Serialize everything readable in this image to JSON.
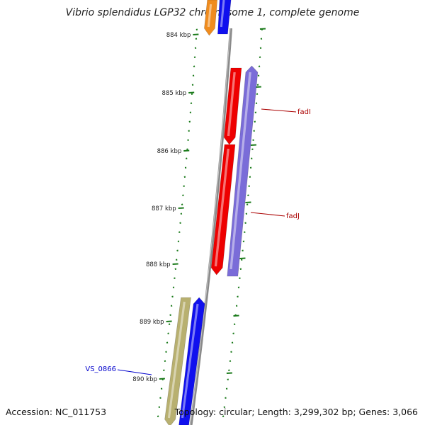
{
  "title": "Vibrio splendidus LGP32 chromosome 1, complete genome",
  "footer": {
    "accession": "Accession: NC_011753",
    "summary": "Topology: circular; Length: 3,299,302 bp; Genes: 3,066"
  },
  "ticks": [
    {
      "label": "884 kbp"
    },
    {
      "label": "885 kbp"
    },
    {
      "label": "886 kbp"
    },
    {
      "label": "887 kbp"
    },
    {
      "label": "888 kbp"
    },
    {
      "label": "889 kbp"
    },
    {
      "label": "890 kbp"
    }
  ],
  "genes": [
    {
      "name": "",
      "color": "#f08c1e",
      "strand": "plus"
    },
    {
      "name": "",
      "color": "#1010ee",
      "strand": "minus"
    },
    {
      "name": "fadI",
      "color": "#ee0000",
      "strand": "plus"
    },
    {
      "name": "",
      "color": "#7a6cd8",
      "strand": "minus"
    },
    {
      "name": "fadJ",
      "color": "#ee0000",
      "strand": "plus"
    },
    {
      "name": "",
      "color": "#b8b070",
      "strand": "plus"
    },
    {
      "name": "VS_0866",
      "color": "#1010ee",
      "strand": "minus"
    }
  ],
  "labels": [
    {
      "text": "fadI",
      "color": "#aa0000"
    },
    {
      "text": "fadJ",
      "color": "#aa0000"
    },
    {
      "text": "VS_0866",
      "color": "#0000cc"
    }
  ],
  "colors": {
    "backbone": "#8a8a8a",
    "ticks": "#1a7a1a",
    "tick_label": "#222222"
  }
}
